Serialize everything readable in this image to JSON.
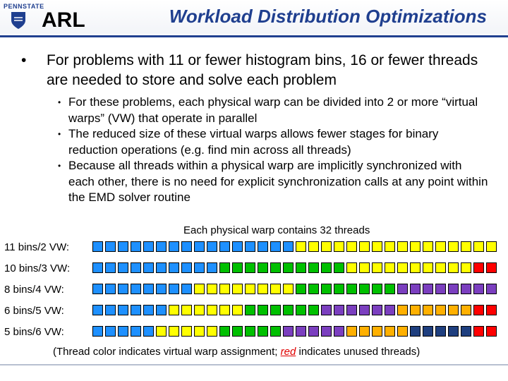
{
  "header": {
    "university": "PENNSTATE",
    "logo_text": "ARL",
    "title": "Workload Distribution Optimizations"
  },
  "main_bullet": "For problems with 11 or fewer histogram bins, 16 or fewer threads are needed to store and solve each problem",
  "sub_bullets": [
    "For these problems, each physical warp can be divided into 2 or more “virtual warps” (VW) that operate in parallel",
    "The reduced size of these virtual warps allows fewer stages for binary reduction operations (e.g. find min across all threads)",
    "Because all threads within a physical warp are implicitly synchronized with each other, there is no need for explicit synchronization calls at any point within the EMD solver routine"
  ],
  "diagram_caption": "Each physical warp contains 32 threads",
  "colors": {
    "blue": "#1e90ff",
    "yellow": "#ffff00",
    "green": "#00c000",
    "purple": "#7b3fbf",
    "orange": "#ffb000",
    "navy": "#1f3f7f",
    "red": "#ff0000"
  },
  "rows": [
    {
      "label": "11 bins/2 VW:",
      "threads": [
        "blue",
        "blue",
        "blue",
        "blue",
        "blue",
        "blue",
        "blue",
        "blue",
        "blue",
        "blue",
        "blue",
        "blue",
        "blue",
        "blue",
        "blue",
        "blue",
        "yellow",
        "yellow",
        "yellow",
        "yellow",
        "yellow",
        "yellow",
        "yellow",
        "yellow",
        "yellow",
        "yellow",
        "yellow",
        "yellow",
        "yellow",
        "yellow",
        "yellow",
        "yellow"
      ]
    },
    {
      "label": "10 bins/3 VW:",
      "threads": [
        "blue",
        "blue",
        "blue",
        "blue",
        "blue",
        "blue",
        "blue",
        "blue",
        "blue",
        "blue",
        "green",
        "green",
        "green",
        "green",
        "green",
        "green",
        "green",
        "green",
        "green",
        "green",
        "yellow",
        "yellow",
        "yellow",
        "yellow",
        "yellow",
        "yellow",
        "yellow",
        "yellow",
        "yellow",
        "yellow",
        "red",
        "red"
      ]
    },
    {
      "label": "8 bins/4 VW:",
      "threads": [
        "blue",
        "blue",
        "blue",
        "blue",
        "blue",
        "blue",
        "blue",
        "blue",
        "yellow",
        "yellow",
        "yellow",
        "yellow",
        "yellow",
        "yellow",
        "yellow",
        "yellow",
        "green",
        "green",
        "green",
        "green",
        "green",
        "green",
        "green",
        "green",
        "purple",
        "purple",
        "purple",
        "purple",
        "purple",
        "purple",
        "purple",
        "purple"
      ]
    },
    {
      "label": "6 bins/5 VW:",
      "threads": [
        "blue",
        "blue",
        "blue",
        "blue",
        "blue",
        "blue",
        "yellow",
        "yellow",
        "yellow",
        "yellow",
        "yellow",
        "yellow",
        "green",
        "green",
        "green",
        "green",
        "green",
        "green",
        "purple",
        "purple",
        "purple",
        "purple",
        "purple",
        "purple",
        "orange",
        "orange",
        "orange",
        "orange",
        "orange",
        "orange",
        "red",
        "red"
      ]
    },
    {
      "label": "5 bins/6 VW:",
      "threads": [
        "blue",
        "blue",
        "blue",
        "blue",
        "blue",
        "yellow",
        "yellow",
        "yellow",
        "yellow",
        "yellow",
        "green",
        "green",
        "green",
        "green",
        "green",
        "purple",
        "purple",
        "purple",
        "purple",
        "purple",
        "orange",
        "orange",
        "orange",
        "orange",
        "orange",
        "navy",
        "navy",
        "navy",
        "navy",
        "navy",
        "red",
        "red"
      ]
    }
  ],
  "footnote": {
    "before": "(Thread color indicates virtual warp assignment; ",
    "red_word": "red",
    "after": " indicates unused threads)"
  }
}
